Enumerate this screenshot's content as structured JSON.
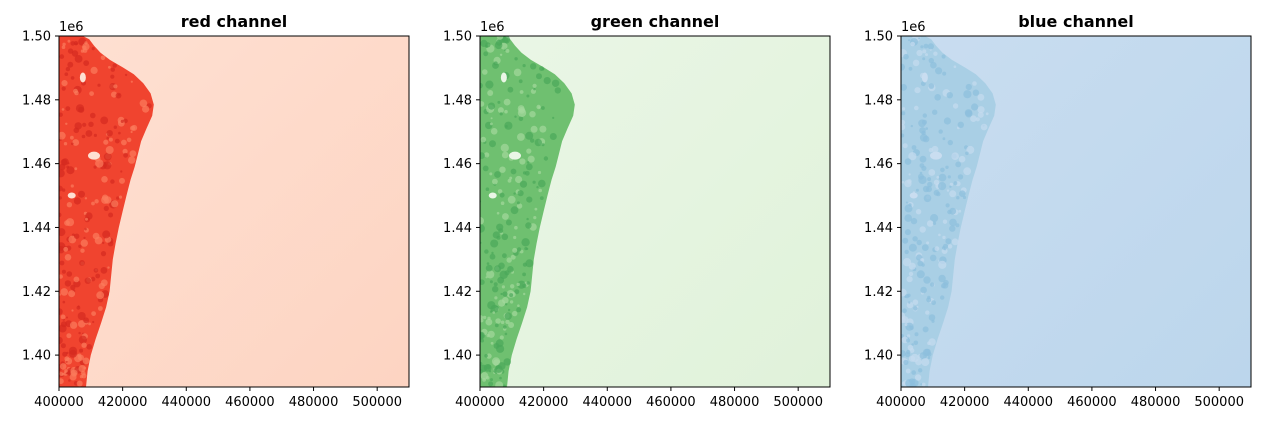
{
  "chart_data": [
    {
      "type": "heatmap",
      "title": "red channel",
      "colormap": "Reds",
      "colors": {
        "coast": "#f0442f",
        "coast_dark": "#d42a20",
        "coast_light": "#fb7c5c",
        "sea": "#fee0d2",
        "sea_dark": "#fdd4c2"
      },
      "xlim": [
        400000,
        510000
      ],
      "ylim": [
        1390000,
        1500000
      ],
      "x_ticks": [
        "400000",
        "420000",
        "440000",
        "460000",
        "480000",
        "500000"
      ],
      "y_ticks": [
        "1.40",
        "1.42",
        "1.44",
        "1.46",
        "1.48",
        "1.50"
      ],
      "y_offset_label": "1e6"
    },
    {
      "type": "heatmap",
      "title": "green channel",
      "colormap": "Greens",
      "colors": {
        "coast": "#6fc070",
        "coast_dark": "#4aa85a",
        "coast_light": "#a4d99c",
        "sea": "#eaf6e6",
        "sea_dark": "#e0f2da"
      },
      "xlim": [
        400000,
        510000
      ],
      "ylim": [
        1390000,
        1500000
      ],
      "x_ticks": [
        "400000",
        "420000",
        "440000",
        "460000",
        "480000",
        "500000"
      ],
      "y_ticks": [
        "1.40",
        "1.42",
        "1.44",
        "1.46",
        "1.48",
        "1.50"
      ],
      "y_offset_label": "1e6"
    },
    {
      "type": "heatmap",
      "title": "blue channel",
      "colormap": "Blues",
      "colors": {
        "coast": "#a9cfe5",
        "coast_dark": "#8dbfdd",
        "coast_light": "#c6dcef",
        "sea": "#c9ddf0",
        "sea_dark": "#bcd6ec"
      },
      "xlim": [
        400000,
        510000
      ],
      "ylim": [
        1390000,
        1500000
      ],
      "x_ticks": [
        "400000",
        "420000",
        "440000",
        "460000",
        "480000",
        "500000"
      ],
      "y_ticks": [
        "1.40",
        "1.42",
        "1.44",
        "1.46",
        "1.48",
        "1.50"
      ],
      "y_offset_label": "1e6"
    }
  ]
}
